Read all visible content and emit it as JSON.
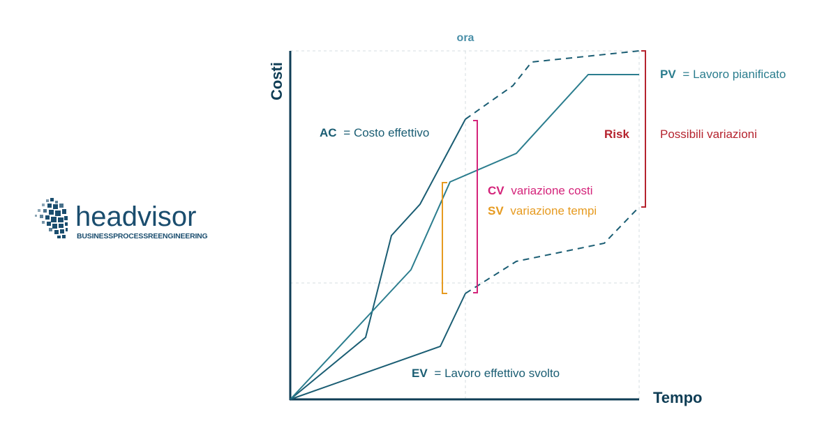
{
  "logo": {
    "wordmark": "headvisor",
    "tagline": "BUSINESSPROCESSREENGINEERING"
  },
  "diagram": {
    "axis_y_label": "Costi",
    "axis_x_label": "Tempo",
    "now_label": "ora",
    "labels": {
      "ac_abbr": "AC",
      "ac_text": "= Costo effettivo",
      "pv_abbr": "PV",
      "pv_text": "= Lavoro pianificato",
      "ev_abbr": "EV",
      "ev_text": "= Lavoro effettivo svolto",
      "cv_abbr": "CV",
      "cv_text": "variazione costi",
      "sv_abbr": "SV",
      "sv_text": "variazione tempi",
      "risk": "Risk",
      "risk_text": "Possibili variazioni"
    },
    "colors": {
      "axis": "#0f3d55",
      "line": "#2b7d8e",
      "dark_line": "#1a5d73",
      "cv": "#d4237a",
      "sv": "#e69a1f",
      "risk": "#b5232e",
      "grid": "#cfd8dc",
      "logo": "#1a4d6e"
    }
  }
}
